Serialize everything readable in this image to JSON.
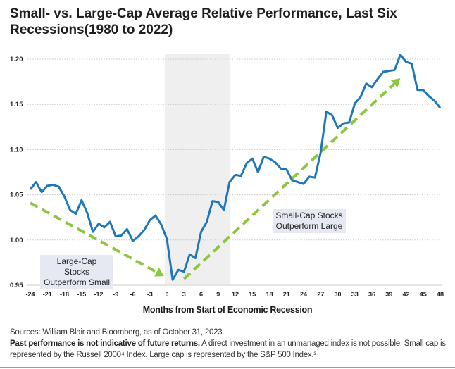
{
  "chart_data": {
    "type": "line",
    "title": "Small- vs. Large-Cap Average Relative Performance, Last Six Recessions(1980 to 2022)",
    "xlabel": "Months from Start of Economic Recession",
    "ylabel": "",
    "xlim": [
      -24,
      48
    ],
    "ylim": [
      0.95,
      1.2
    ],
    "x_ticks": [
      "-24",
      "-21",
      "-18",
      "-15",
      "-12",
      "-9",
      "-6",
      "-3",
      "0",
      "3",
      "6",
      "9",
      "12",
      "15",
      "18",
      "21",
      "24",
      "27",
      "30",
      "33",
      "36",
      "39",
      "42",
      "45",
      "48"
    ],
    "y_ticks": [
      "0.95",
      "1.00",
      "1.05",
      "1.10",
      "1.15",
      "1.20"
    ],
    "grid": "horizontal dotted",
    "recession_shading": {
      "from": 0,
      "to": 11,
      "color": "#efefef"
    },
    "line_color": "#1f77b8",
    "arrow_color": "#8dc63f",
    "x": [
      -24,
      -23,
      -22,
      -21,
      -20,
      -19,
      -18,
      -17,
      -16,
      -15,
      -14,
      -13,
      -12,
      -11,
      -10,
      -9,
      -8,
      -7,
      -6,
      -5,
      -4,
      -3,
      -2,
      -1,
      0,
      1,
      2,
      3,
      4,
      5,
      6,
      7,
      8,
      9,
      10,
      11,
      12,
      13,
      14,
      15,
      16,
      17,
      18,
      19,
      20,
      21,
      22,
      23,
      24,
      25,
      26,
      27,
      28,
      29,
      30,
      31,
      32,
      33,
      34,
      35,
      36,
      37,
      38,
      39,
      40,
      41,
      42,
      43,
      44,
      45,
      46,
      47,
      48
    ],
    "values": [
      1.056,
      1.064,
      1.053,
      1.06,
      1.061,
      1.059,
      1.048,
      1.033,
      1.029,
      1.044,
      1.03,
      1.009,
      1.018,
      1.014,
      1.02,
      1.004,
      1.005,
      1.012,
      0.999,
      1.004,
      1.011,
      1.022,
      1.027,
      1.017,
      1.001,
      0.956,
      0.967,
      0.965,
      0.984,
      0.98,
      1.009,
      1.02,
      1.043,
      1.042,
      1.033,
      1.064,
      1.072,
      1.071,
      1.085,
      1.09,
      1.075,
      1.092,
      1.09,
      1.086,
      1.079,
      1.078,
      1.066,
      1.064,
      1.062,
      1.07,
      1.069,
      1.097,
      1.142,
      1.138,
      1.124,
      1.129,
      1.13,
      1.151,
      1.158,
      1.173,
      1.169,
      1.178,
      1.186,
      1.187,
      1.188,
      1.205,
      1.197,
      1.195,
      1.166,
      1.166,
      1.159,
      1.154,
      1.146
    ],
    "annotations": [
      {
        "text_line1": "Large-Cap Stocks",
        "text_line2": "Outperform Small",
        "arrow_from": [
          -24,
          1.041
        ],
        "arrow_to": [
          -0.5,
          0.96
        ]
      },
      {
        "text_line1": "Small-Cap Stocks",
        "text_line2": "Outperform Large",
        "arrow_from": [
          3,
          0.957
        ],
        "arrow_to": [
          41,
          1.179
        ]
      }
    ]
  },
  "footer": {
    "sources": "Sources: William Blair and Bloomberg, as of October 31, 2023.",
    "disclaimer_bold": "Past performance is not indicative of future returns.",
    "disclaimer_rest": " A direct investment in an unmanaged index is not possible. Small cap is represented by the Russell 2000⁴ Index. Large cap is represented by the S&P 500 Index.³"
  }
}
